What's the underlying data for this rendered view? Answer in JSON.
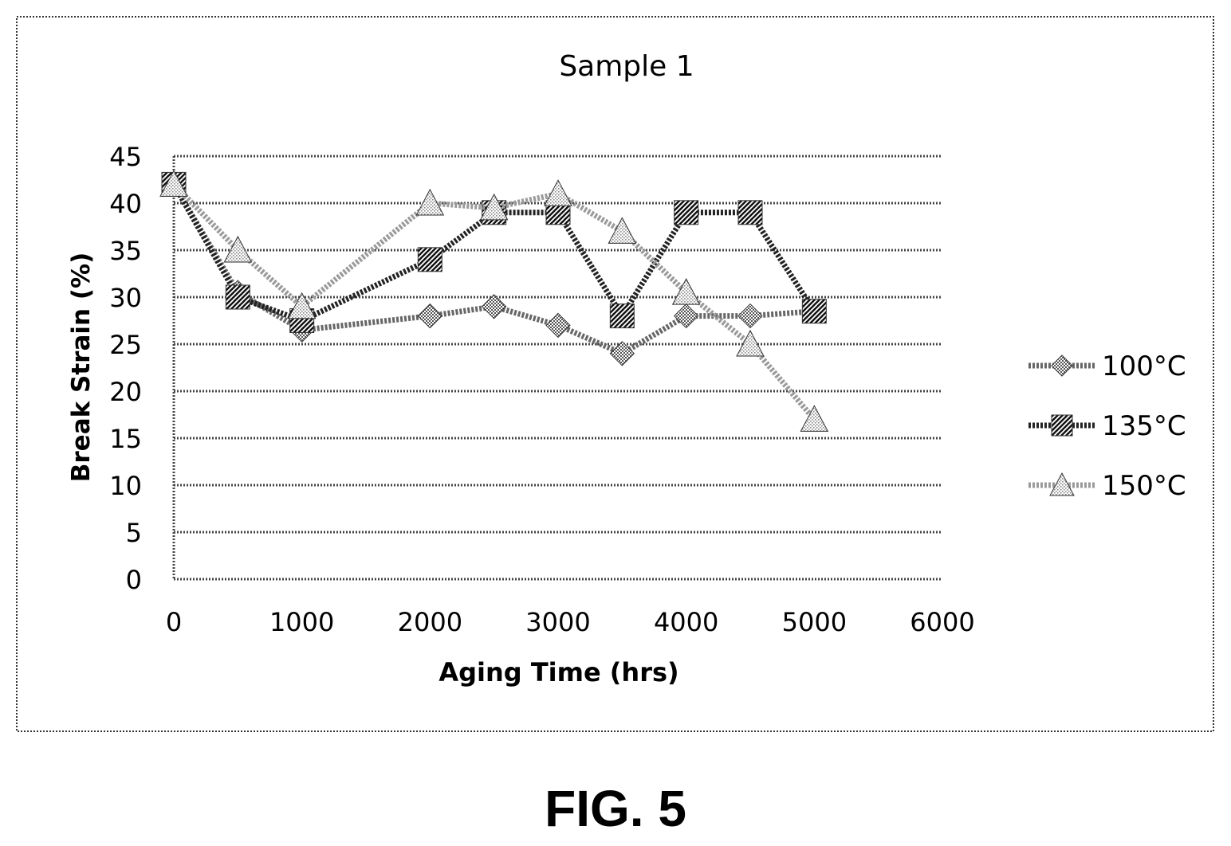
{
  "figure_label": "FIG. 5",
  "chart_data": {
    "type": "line",
    "title": "Sample 1",
    "xlabel": "Aging Time (hrs)",
    "ylabel": "Break Strain (%)",
    "xlim": [
      0,
      6000
    ],
    "ylim": [
      0,
      45
    ],
    "x_ticks": [
      "0",
      "1000",
      "2000",
      "3000",
      "4000",
      "5000",
      "6000"
    ],
    "y_ticks": [
      "0",
      "5",
      "10",
      "15",
      "20",
      "25",
      "30",
      "35",
      "40",
      "45"
    ],
    "grid": true,
    "legend_position": "right",
    "series": [
      {
        "name": "100°C",
        "marker": "diamond",
        "color": "#666666",
        "x": [
          0,
          500,
          1000,
          2000,
          2500,
          3000,
          3500,
          4000,
          4500,
          5000
        ],
        "y": [
          42,
          30.5,
          26.5,
          28,
          29,
          27,
          24,
          28,
          28,
          28.5
        ]
      },
      {
        "name": "135°C",
        "marker": "square",
        "color": "#222222",
        "x": [
          0,
          500,
          1000,
          2000,
          2500,
          3000,
          3500,
          4000,
          4500,
          5000
        ],
        "y": [
          42,
          30,
          27.5,
          34,
          39,
          39,
          28,
          39,
          39,
          28.5
        ]
      },
      {
        "name": "150°C",
        "marker": "triangle",
        "color": "#9a9a9a",
        "x": [
          0,
          500,
          1000,
          2000,
          2500,
          3000,
          3500,
          4000,
          4500,
          5000
        ],
        "y": [
          42,
          35,
          29,
          40,
          39.5,
          41,
          37,
          30.5,
          25,
          17
        ]
      }
    ]
  }
}
